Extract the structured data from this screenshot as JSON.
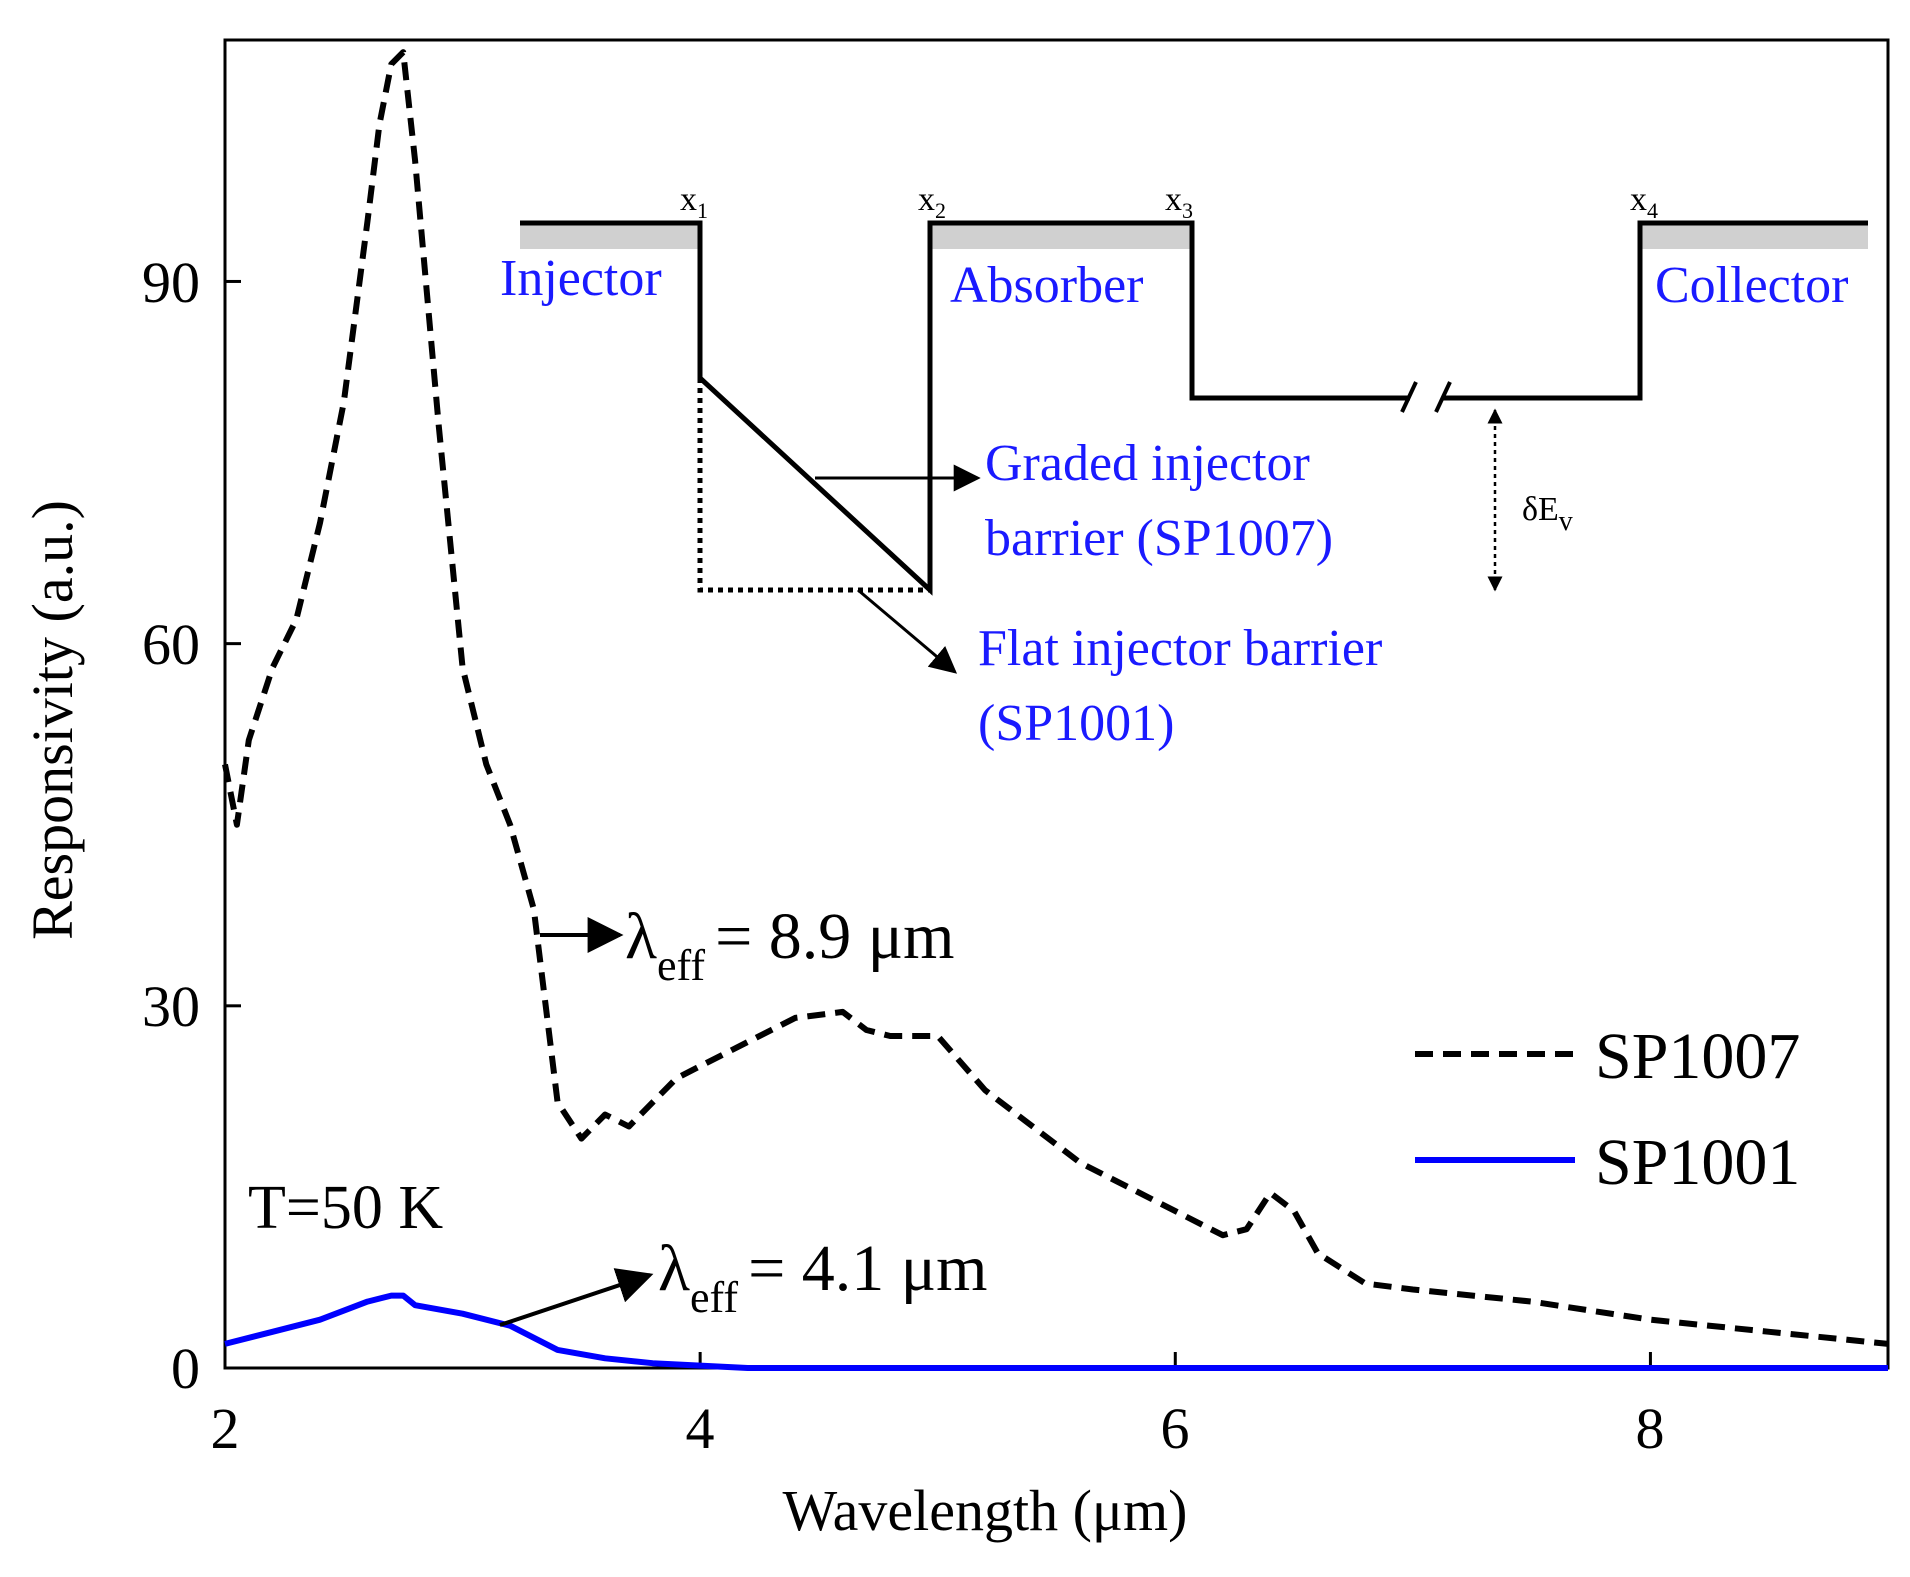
{
  "chart_data": {
    "type": "line",
    "title": "",
    "xlabel": "Wavelength (μm)",
    "ylabel": "Responsivity (a.u.)",
    "xlim": [
      2,
      9
    ],
    "ylim": [
      0,
      110
    ],
    "xticks": [
      2,
      4,
      6,
      8
    ],
    "yticks": [
      0,
      30,
      60,
      90
    ],
    "grid": false,
    "legend": "bottom-right",
    "series": [
      {
        "name": "SP1007",
        "style": "dashed",
        "color": "#000000",
        "x": [
          2.0,
          2.05,
          2.1,
          2.2,
          2.3,
          2.4,
          2.5,
          2.6,
          2.65,
          2.7,
          2.75,
          2.8,
          2.9,
          3.0,
          3.1,
          3.2,
          3.3,
          3.35,
          3.4,
          3.5,
          3.6,
          3.7,
          3.8,
          3.9,
          4.0,
          4.2,
          4.4,
          4.6,
          4.7,
          4.8,
          5.0,
          5.2,
          5.4,
          5.6,
          5.8,
          6.0,
          6.2,
          6.3,
          6.4,
          6.5,
          6.6,
          6.8,
          7.0,
          7.5,
          8.0,
          8.5,
          9.0
        ],
        "y": [
          50,
          45,
          52,
          58,
          62,
          70,
          80,
          95,
          103,
          108,
          109,
          100,
          78,
          58,
          50,
          45,
          38,
          30,
          22,
          19,
          21,
          20,
          22,
          24,
          25,
          27,
          29,
          29.5,
          28,
          27.5,
          27.5,
          23,
          20,
          17,
          15,
          13,
          11,
          11.5,
          14.5,
          13,
          9.5,
          7,
          6.5,
          5.5,
          4,
          3,
          2
        ]
      },
      {
        "name": "SP1001",
        "style": "solid",
        "color": "#0000ff",
        "x": [
          2.0,
          2.2,
          2.4,
          2.6,
          2.7,
          2.75,
          2.8,
          3.0,
          3.2,
          3.4,
          3.6,
          3.8,
          4.0,
          4.2,
          5.0,
          6.0,
          7.0,
          8.0,
          9.0
        ],
        "y": [
          2,
          3,
          4,
          5.5,
          6,
          6,
          5.2,
          4.5,
          3.5,
          1.5,
          0.8,
          0.4,
          0.2,
          0,
          0,
          0,
          0,
          0,
          0
        ]
      }
    ],
    "annotations": {
      "temperature": "T=50 K",
      "lambda_symbol": "λ",
      "lambda_sub": "eff",
      "sp1007_cutoff": "= 8.9 μm",
      "sp1001_cutoff": "= 4.1 μm"
    }
  },
  "inset": {
    "injector": "Injector",
    "absorber": "Absorber",
    "collector": "Collector",
    "x1": "x",
    "x1_sub": "1",
    "x2": "x",
    "x2_sub": "2",
    "x3": "x",
    "x3_sub": "3",
    "x4": "x",
    "x4_sub": "4",
    "graded_line1": "Graded injector",
    "graded_line2": "barrier (SP1007)",
    "flat_line1": "Flat injector barrier",
    "flat_line2": "(SP1001)",
    "delta_ev": "δE",
    "delta_ev_sub": "v"
  }
}
